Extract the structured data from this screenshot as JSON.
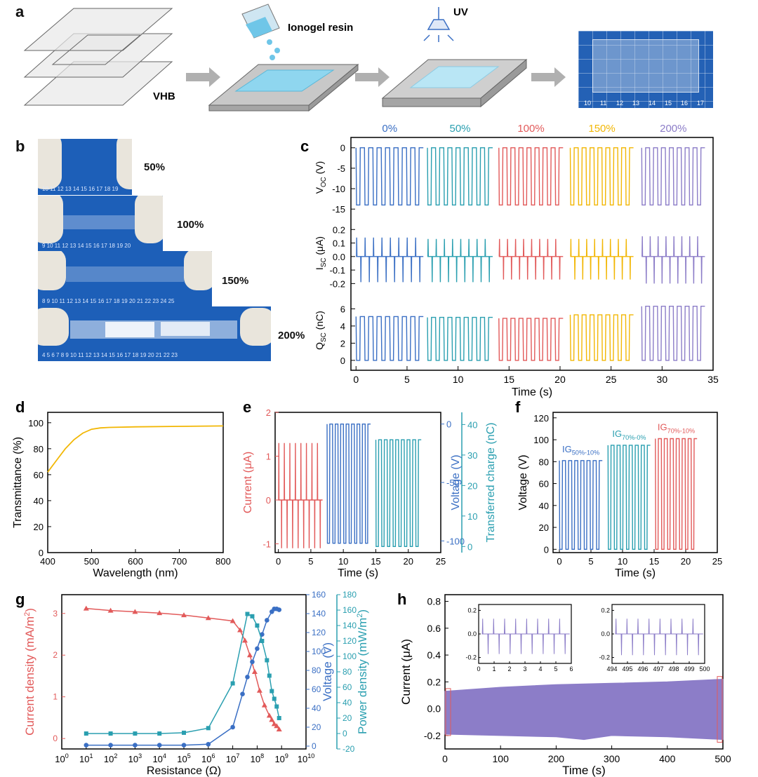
{
  "panel_a": {
    "label": "a",
    "vhb_label": "VHB",
    "resin_label": "Ionogel resin",
    "uv_label": "UV",
    "photo_ruler_ticks": [
      "10",
      "11",
      "12",
      "13",
      "14",
      "15",
      "16",
      "17"
    ]
  },
  "panel_b": {
    "label": "b",
    "strains": [
      "50%",
      "100%",
      "150%",
      "200%"
    ],
    "rulers": [
      "10  11  12  13  14  15  16  17  18  19",
      "9  10  11  12  13  14  15  16  17  18  19  20",
      "8  9  10  11  12  13  14  15  16  17  18  19  20  21  22  23  24  25",
      "4  5  6  7  8  9  10  11  12  13  14  15  16  17  18  19  20  21  22  23"
    ]
  },
  "panel_labels": {
    "c": "c",
    "d": "d",
    "e": "e",
    "f": "f",
    "g": "g",
    "h": "h"
  },
  "chart_data": [
    {
      "id": "c",
      "type": "line",
      "title": "",
      "strain_labels": [
        "0%",
        "50%",
        "100%",
        "150%",
        "200%"
      ],
      "strain_colors": [
        "#3a6fc4",
        "#2a9fb0",
        "#e25a5a",
        "#f2b705",
        "#8c7dc8"
      ],
      "xlabel": "Time (s)",
      "xlim": [
        -0.5,
        35
      ],
      "xticks": [
        "0",
        "5",
        "10",
        "15",
        "20",
        "25",
        "30",
        "35"
      ],
      "xtick_values": [
        0,
        5,
        10,
        15,
        20,
        25,
        30,
        35
      ],
      "segments_x": [
        [
          0,
          6.6
        ],
        [
          7.0,
          13.4
        ],
        [
          14.0,
          20.3
        ],
        [
          21.0,
          27.2
        ],
        [
          28.0,
          34.2
        ]
      ],
      "cycles_per_segment": 8,
      "subplots": [
        {
          "ylabel": "V",
          "ylabel_sub": "OC",
          "ylabel_unit": " (V)",
          "ylim": [
            -16,
            1.5
          ],
          "yticks": [
            "0",
            "-5",
            "-10",
            "-15"
          ],
          "ytick_values": [
            0,
            -5,
            -10,
            -15
          ],
          "high": [
            0,
            0,
            0,
            0,
            0
          ],
          "low": [
            -14,
            -14,
            -14,
            -14,
            -14
          ]
        },
        {
          "ylabel": "I",
          "ylabel_sub": "SC",
          "ylabel_unit": " (μA)",
          "ylim": [
            -0.25,
            0.3
          ],
          "yticks": [
            "0.2",
            "0.1",
            "0.0",
            "-0.1",
            "-0.2"
          ],
          "ytick_values": [
            0.2,
            0.1,
            0.0,
            -0.1,
            -0.2
          ],
          "peak_pos": [
            0.14,
            0.13,
            0.13,
            0.13,
            0.15
          ],
          "peak_neg": [
            -0.19,
            -0.19,
            -0.17,
            -0.17,
            -0.2
          ]
        },
        {
          "ylabel": "Q",
          "ylabel_sub": "SC",
          "ylabel_unit": " (nC)",
          "ylim": [
            -0.5,
            7.5
          ],
          "yticks": [
            "6",
            "4",
            "2",
            "0"
          ],
          "ytick_values": [
            6,
            4,
            2,
            0
          ],
          "high": [
            5.1,
            5.0,
            4.9,
            5.3,
            6.3
          ],
          "low": [
            0,
            0,
            0,
            0,
            0
          ]
        }
      ]
    },
    {
      "id": "d",
      "type": "line",
      "xlabel": "Wavelength (nm)",
      "ylabel": "Transmittance (%)",
      "xlim": [
        400,
        800
      ],
      "ylim": [
        0,
        100
      ],
      "xticks": [
        "400",
        "500",
        "600",
        "700",
        "800"
      ],
      "xtick_values": [
        400,
        500,
        600,
        700,
        800
      ],
      "yticks": [
        "0",
        "20",
        "40",
        "60",
        "80",
        "100"
      ],
      "ytick_values": [
        0,
        20,
        40,
        60,
        80,
        100
      ],
      "color": "#f2b705",
      "x": [
        400,
        420,
        440,
        460,
        480,
        500,
        520,
        540,
        600,
        700,
        800
      ],
      "y": [
        62,
        71,
        80,
        87,
        92,
        95,
        96,
        96.4,
        96.8,
        97.2,
        97.5
      ]
    },
    {
      "id": "e",
      "type": "line",
      "xlabel": "Time (s)",
      "xlim": [
        -0.5,
        25
      ],
      "xticks": [
        "0",
        "5",
        "10",
        "15",
        "20",
        "25"
      ],
      "xtick_values": [
        0,
        5,
        10,
        15,
        20,
        25
      ],
      "series": [
        {
          "name": "Current",
          "axis_label": "Current (μA)",
          "color": "#e25a5a",
          "ylim": [
            -1.2,
            2
          ],
          "yticks": [
            "2",
            "1",
            "0",
            "-1"
          ],
          "ytick_values": [
            2,
            1,
            0,
            -1
          ],
          "x_range": [
            0,
            6.8
          ],
          "peak_pos": 1.3,
          "peak_neg": -1.1,
          "base": 0
        },
        {
          "name": "Voltage",
          "axis_label": "Voltage (V)",
          "color": "#3a6fc4",
          "ylim": [
            -110,
            10
          ],
          "yticks": [
            "0",
            "-50",
            "-100"
          ],
          "ytick_values": [
            0,
            -50,
            -100
          ],
          "x_range": [
            7.5,
            14.2
          ],
          "high": 0,
          "low": -102
        },
        {
          "name": "Transferred charge",
          "axis_label": "Transferred charge (nC)",
          "color": "#2a9fb0",
          "ylim": [
            -2,
            44
          ],
          "yticks": [
            "40",
            "30",
            "20",
            "10",
            "0"
          ],
          "ytick_values": [
            40,
            30,
            20,
            10,
            0
          ],
          "x_range": [
            15.0,
            22.0
          ],
          "high": 35,
          "low": 0
        }
      ]
    },
    {
      "id": "f",
      "type": "line",
      "xlabel": "Time (s)",
      "ylabel": "Voltage (V)",
      "xlim": [
        -1,
        25
      ],
      "ylim": [
        -3,
        125
      ],
      "xticks": [
        "0",
        "5",
        "10",
        "15",
        "20",
        "25"
      ],
      "xtick_values": [
        0,
        5,
        10,
        15,
        20,
        25
      ],
      "yticks": [
        "0",
        "20",
        "40",
        "60",
        "80",
        "100",
        "120"
      ],
      "ytick_values": [
        0,
        20,
        40,
        60,
        80,
        100,
        120
      ],
      "series": [
        {
          "name": "IG",
          "sub": "50%-10%",
          "color": "#3a6fc4",
          "x_range": [
            0,
            6.8
          ],
          "high": 81
        },
        {
          "name": "IG",
          "sub": "70%-0%",
          "color": "#2a9fb0",
          "x_range": [
            7.7,
            14.4
          ],
          "high": 95
        },
        {
          "name": "IG",
          "sub": "70%-10%",
          "color": "#e25a5a",
          "x_range": [
            15.2,
            21.8
          ],
          "high": 101
        }
      ]
    },
    {
      "id": "g",
      "type": "line",
      "xlabel": "Resistance (Ω)",
      "x_log_exponents": [
        0,
        1,
        2,
        3,
        4,
        5,
        6,
        7,
        8,
        9,
        10
      ],
      "xlim": [
        0,
        10
      ],
      "series": [
        {
          "name": "Current density",
          "axis_label": "Current density (mA/m",
          "axis_label_sup": "2",
          "axis_label_end": ")",
          "color": "#e25a5a",
          "marker": "triangle",
          "ylim": [
            -0.25,
            3.45
          ],
          "yticks": [
            "0",
            "1",
            "2",
            "3"
          ],
          "ytick_values": [
            0,
            1,
            2,
            3
          ],
          "x": [
            1,
            2,
            3,
            4,
            5,
            6,
            7,
            7.3,
            7.5,
            7.7,
            7.9,
            8.1,
            8.3,
            8.5,
            8.6,
            8.7,
            8.8,
            8.9
          ],
          "y": [
            3.12,
            3.07,
            3.04,
            3.01,
            2.96,
            2.89,
            2.82,
            2.6,
            2.35,
            2.0,
            1.6,
            1.15,
            0.8,
            0.55,
            0.45,
            0.35,
            0.3,
            0.22
          ]
        },
        {
          "name": "Voltage",
          "axis_label": "Voltage (V)",
          "color": "#3a6fc4",
          "marker": "circle",
          "ylim": [
            -3,
            160
          ],
          "yticks": [
            "0",
            "20",
            "40",
            "60",
            "80",
            "100",
            "120",
            "140",
            "160"
          ],
          "ytick_values": [
            0,
            20,
            40,
            60,
            80,
            100,
            120,
            140,
            160
          ],
          "x": [
            1,
            2,
            3,
            4,
            5,
            6,
            7,
            7.4,
            7.6,
            7.8,
            8.0,
            8.2,
            8.4,
            8.6,
            8.7,
            8.8,
            8.9
          ],
          "y": [
            1,
            1,
            1,
            1,
            1,
            2,
            20,
            55,
            73,
            89,
            103,
            118,
            133,
            142,
            145,
            145,
            144
          ]
        },
        {
          "name": "Power density",
          "axis_label": "Power density (mW/m",
          "axis_label_sup": "2",
          "axis_label_end": ")",
          "color": "#2a9fb0",
          "marker": "square",
          "ylim": [
            -20,
            180
          ],
          "yticks": [
            "-20",
            "0",
            "20",
            "40",
            "60",
            "80",
            "100",
            "120",
            "140",
            "160",
            "180"
          ],
          "ytick_values": [
            -20,
            0,
            20,
            40,
            60,
            80,
            100,
            120,
            140,
            160,
            180
          ],
          "x": [
            1,
            2,
            3,
            4,
            5,
            6,
            7,
            7.6,
            7.8,
            8.0,
            8.2,
            8.4,
            8.5,
            8.6,
            8.7,
            8.8,
            8.9
          ],
          "y": [
            0,
            0,
            0,
            0,
            1,
            7,
            65,
            155,
            152,
            140,
            120,
            95,
            75,
            55,
            45,
            35,
            20
          ]
        }
      ]
    },
    {
      "id": "h",
      "type": "area",
      "xlabel": "Time (s)",
      "ylabel": "Current (μA)",
      "xlim": [
        0,
        500
      ],
      "ylim": [
        -0.3,
        0.85
      ],
      "xticks": [
        "0",
        "100",
        "200",
        "300",
        "400",
        "500"
      ],
      "xtick_values": [
        0,
        100,
        200,
        300,
        400,
        500
      ],
      "yticks": [
        "-0.2",
        "0.0",
        "0.2",
        "0.4",
        "0.6",
        "0.8"
      ],
      "ytick_values": [
        -0.2,
        0.0,
        0.2,
        0.4,
        0.6,
        0.8
      ],
      "color": "#8c7dc8",
      "envelope_x": [
        0,
        100,
        200,
        250,
        300,
        400,
        500
      ],
      "envelope_top": [
        0.13,
        0.16,
        0.18,
        0.185,
        0.19,
        0.2,
        0.22
      ],
      "envelope_bottom": [
        -0.19,
        -0.2,
        -0.21,
        -0.23,
        -0.2,
        -0.21,
        -0.23
      ],
      "insets": [
        {
          "xlim": [
            0,
            6
          ],
          "ylim": [
            -0.25,
            0.25
          ],
          "xticks": [
            "0",
            "1",
            "2",
            "3",
            "4",
            "5",
            "6"
          ],
          "xtick_values": [
            0,
            1,
            2,
            3,
            4,
            5,
            6
          ],
          "yticks": [
            "0.2",
            "0.0",
            "-0.2"
          ],
          "ytick_values": [
            0.2,
            0.0,
            -0.2
          ],
          "peak_pos": 0.13,
          "peak_neg": -0.17,
          "period": 0.8
        },
        {
          "xlim": [
            494,
            500
          ],
          "ylim": [
            -0.25,
            0.25
          ],
          "xticks": [
            "494",
            "495",
            "496",
            "497",
            "498",
            "499",
            "500"
          ],
          "xtick_values": [
            494,
            495,
            496,
            497,
            498,
            499,
            500
          ],
          "yticks": [
            "0.2",
            "0.0",
            "-0.2"
          ],
          "ytick_values": [
            0.2,
            0.0,
            -0.2
          ],
          "peak_pos": 0.13,
          "peak_neg": -0.18,
          "period": 0.8
        }
      ]
    }
  ]
}
